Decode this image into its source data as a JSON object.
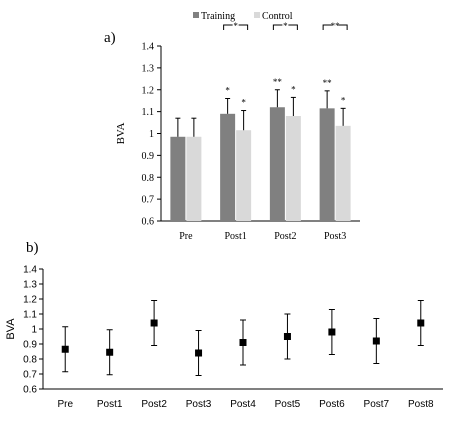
{
  "chart_data": [
    {
      "panel": "a)",
      "type": "bar",
      "ylabel": "BVA",
      "categories": [
        "Pre",
        "Post1",
        "Post2",
        "Post3"
      ],
      "ylim": [
        0.6,
        1.4
      ],
      "yticks": [
        "0.6",
        "0.7",
        "0.8",
        "0.9",
        "1",
        "1.1",
        "1.2",
        "1.3",
        "1.4"
      ],
      "legend_position": "top",
      "series": [
        {
          "name": "Training",
          "color": "#808080",
          "values": [
            0.985,
            1.09,
            1.12,
            1.115
          ],
          "error": [
            0.085,
            0.07,
            0.08,
            0.08
          ],
          "marks": [
            "",
            "*",
            "**",
            "**"
          ]
        },
        {
          "name": "Control",
          "color": "#d9d9d9",
          "values": [
            0.985,
            1.015,
            1.08,
            1.035
          ],
          "error": [
            0.085,
            0.09,
            0.085,
            0.08
          ],
          "marks": [
            "",
            "*",
            "*",
            "*"
          ]
        }
      ],
      "group_marks": [
        "",
        "*",
        "*",
        "**"
      ]
    },
    {
      "panel": "b)",
      "type": "scatter",
      "ylabel": "BVA",
      "categories": [
        "Pre",
        "Post1",
        "Post2",
        "Post3",
        "Post4",
        "Post5",
        "Post6",
        "Post7",
        "Post8"
      ],
      "ylim": [
        0.6,
        1.4
      ],
      "yticks": [
        "0.6",
        "0.7",
        "0.8",
        "0.9",
        "1",
        "1.1",
        "1.2",
        "1.3",
        "1.4"
      ],
      "series": [
        {
          "values": [
            0.865,
            0.845,
            1.04,
            0.84,
            0.91,
            0.95,
            0.98,
            0.92,
            1.04
          ],
          "error": [
            0.15,
            0.15,
            0.15,
            0.15,
            0.15,
            0.15,
            0.15,
            0.15,
            0.15
          ]
        }
      ]
    }
  ]
}
